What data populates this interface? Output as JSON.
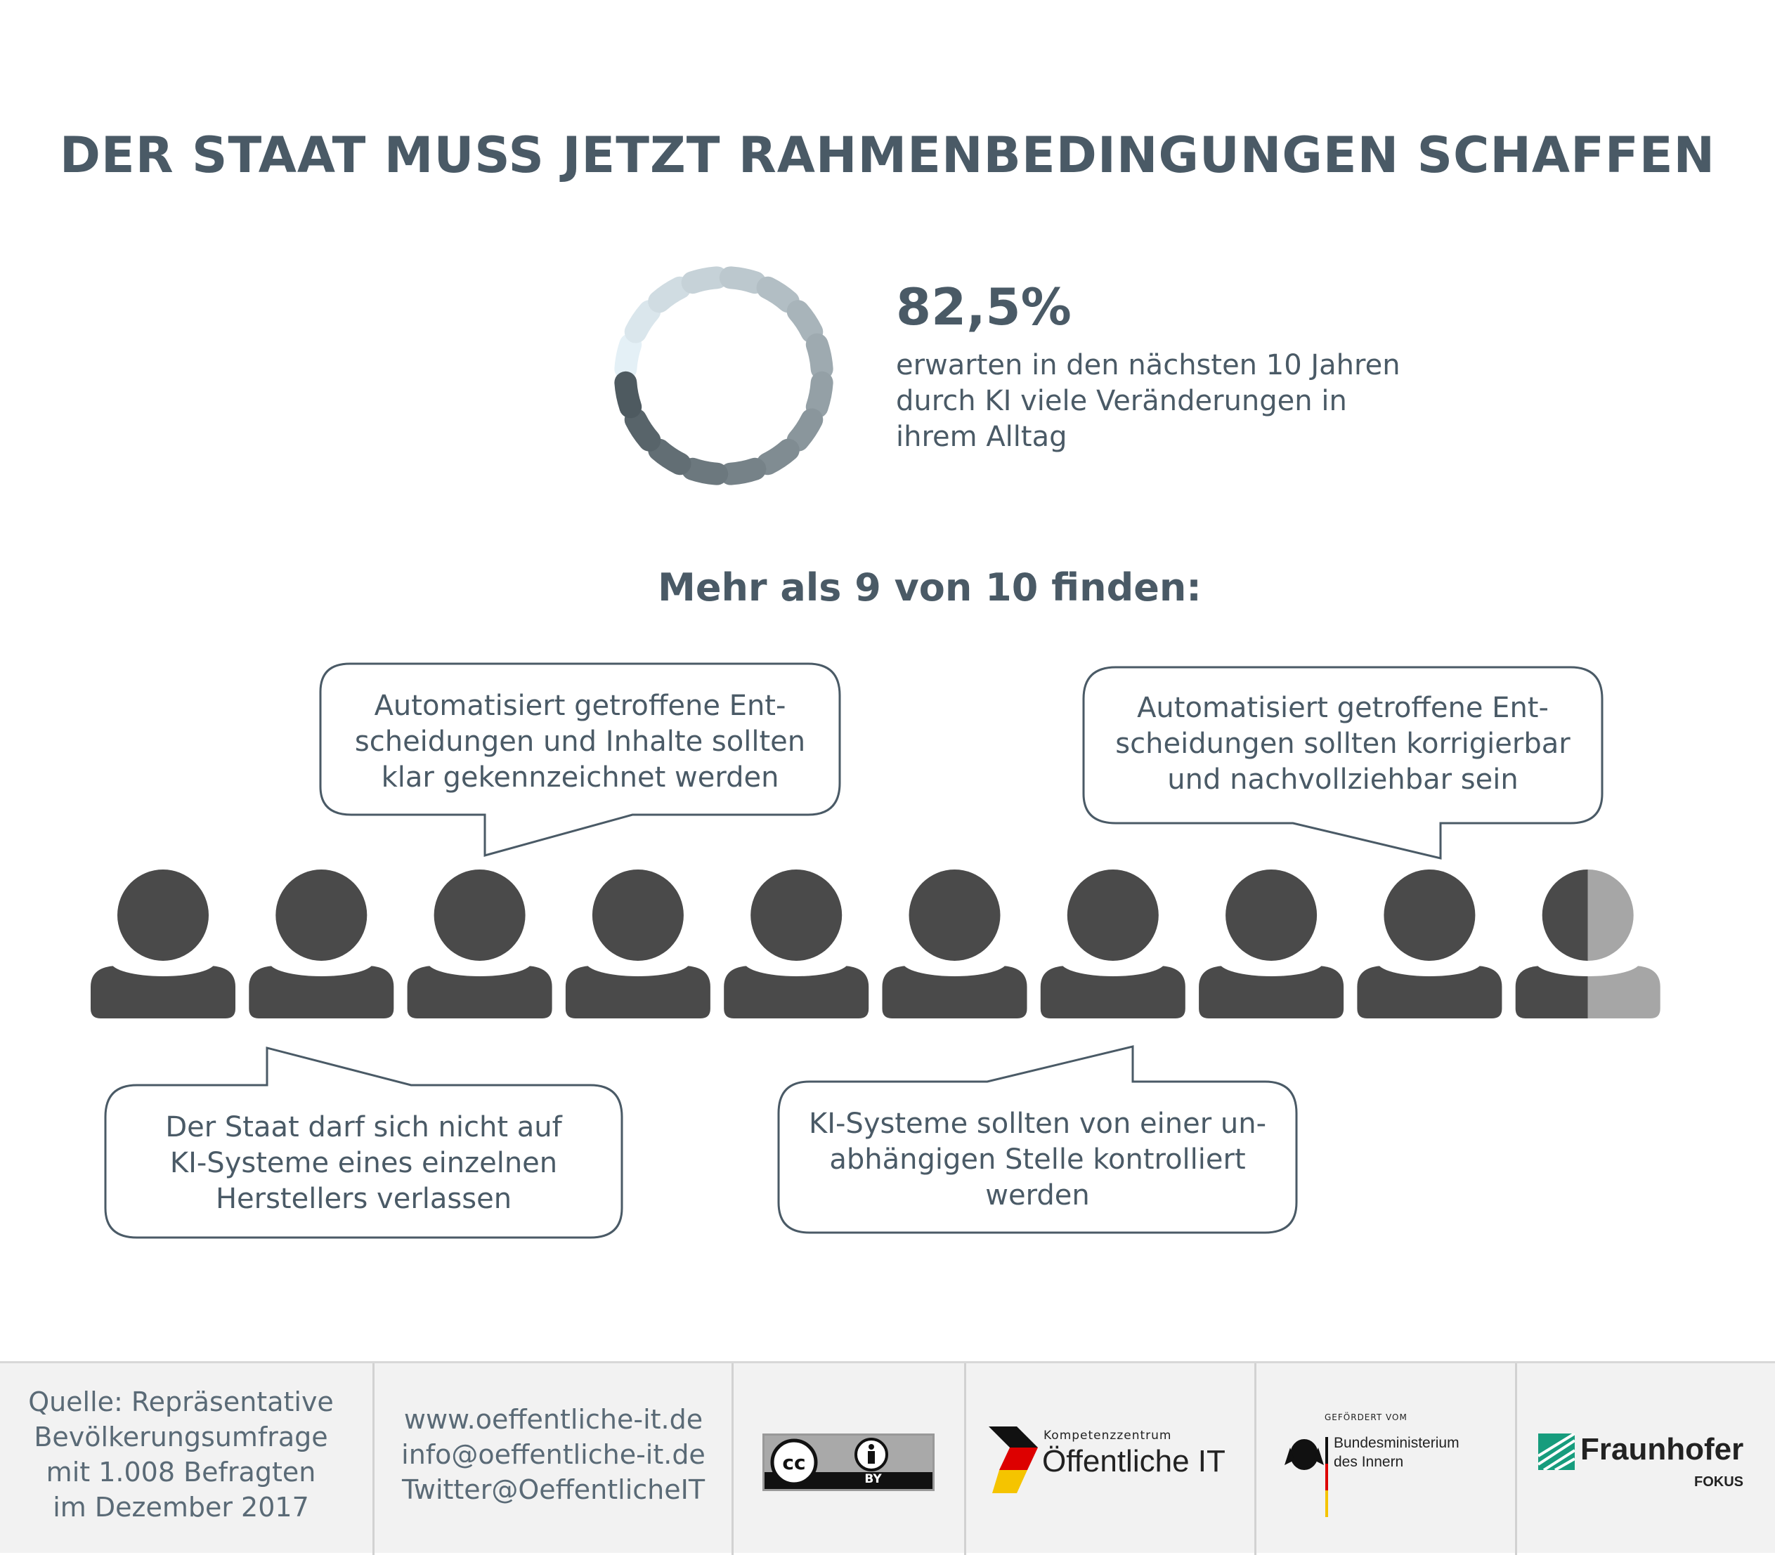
{
  "title": "DER STAAT MUSS JETZT RAHMENBEDINGUNGEN SCHAFFEN",
  "stat": {
    "value": "82,5%",
    "fraction": 0.825,
    "desc_lines": [
      "erwarten in den nächsten 10 Jahren",
      "durch KI viele Veränderungen in",
      "ihrem Alltag"
    ]
  },
  "subtitle": "Mehr als 9 von 10 finden:",
  "bubbles": [
    {
      "lines": [
        "Automatisiert getroffene Ent-",
        "scheidungen und Inhalte sollten",
        "klar gekennzeichnet werden"
      ]
    },
    {
      "lines": [
        "Automatisiert getroffene Ent-",
        "scheidungen sollten korrigierbar",
        "und nachvollziehbar sein"
      ]
    },
    {
      "lines": [
        "Der Staat darf sich nicht auf",
        "KI-Systeme eines einzelnen",
        "Herstellers verlassen"
      ]
    },
    {
      "lines": [
        "KI-Systeme sollten von einer un-",
        "abhängigen Stelle kontrolliert",
        "werden"
      ]
    }
  ],
  "people": {
    "total": 10,
    "filled": 9.5
  },
  "colors": {
    "text": "#4a5a66",
    "person": "#4a4a4a",
    "person_light": "#a6a6a6",
    "footer_bg": "#f2f2f2"
  },
  "footer": {
    "source_lines": [
      "Quelle: Repräsentative",
      "Bevölkerungsumfrage",
      "mit 1.008 Befragten",
      "im Dezember 2017"
    ],
    "contact_lines": [
      "www.oeffentliche-it.de",
      "info@oeffentliche-it.de",
      "Twitter@OeffentlicheIT"
    ],
    "license_label": "BY",
    "license_icon": "cc-by-icon",
    "kompetenz_small": "Kompetenzzentrum",
    "kompetenz_main": "Öffentliche IT",
    "bmi_small": "GEFÖRDERT VOM",
    "bmi_lines": [
      "Bundesministerium",
      "des Innern"
    ],
    "fraunhofer_main": "Fraunhofer",
    "fraunhofer_sub": "FOKUS"
  }
}
